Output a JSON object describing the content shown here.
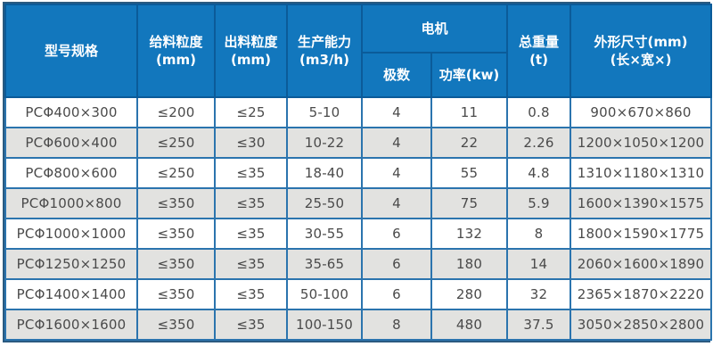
{
  "colors": {
    "header_bg": "#1277bd",
    "header_border": "#0b5b99",
    "header_text": "#ffffff",
    "outer_border": "#2a5a80",
    "cell_border": "#2b74ae",
    "row_bg": "#ffffff",
    "row_alt_bg": "#e2e2e0",
    "data_text": "#4a4a4a"
  },
  "table": {
    "headers": {
      "model": "型号规格",
      "feed_size": "给料粒度\n(mm)",
      "discharge_size": "出料粒度\n(mm)",
      "capacity": "生产能力\n(m3/h)",
      "motor_group": "电机",
      "poles": "极数",
      "power": "功率(kw)",
      "weight": "总重量\n(t)",
      "dimensions": "外形尺寸(mm)\n(长×宽×)"
    },
    "rows": [
      [
        "PCΦ400×300",
        "≤200",
        "≤25",
        "5-10",
        "4",
        "11",
        "0.8",
        "900×670×860"
      ],
      [
        "PCΦ600×400",
        "≤250",
        "≤30",
        "10-22",
        "4",
        "22",
        "2.26",
        "1200×1050×1200"
      ],
      [
        "PCΦ800×600",
        "≤250",
        "≤35",
        "18-40",
        "4",
        "55",
        "4.8",
        "1310×1180×1310"
      ],
      [
        "PCΦ1000×800",
        "≤350",
        "≤35",
        "25-50",
        "4",
        "75",
        "5.9",
        "1600×1390×1575"
      ],
      [
        "PCΦ1000×1000",
        "≤350",
        "≤35",
        "30-55",
        "6",
        "132",
        "8",
        "1800×1590×1775"
      ],
      [
        "PCΦ1250×1250",
        "≤350",
        "≤35",
        "35-65",
        "6",
        "180",
        "14",
        "2060×1600×1890"
      ],
      [
        "PCΦ1400×1400",
        "≤350",
        "≤35",
        "50-100",
        "6",
        "280",
        "32",
        "2365×1870×2220"
      ],
      [
        "PCΦ1600×1600",
        "≤350",
        "≤35",
        "100-150",
        "8",
        "480",
        "37.5",
        "3050×2850×2800"
      ]
    ],
    "column_names": [
      "model",
      "feed-size",
      "discharge-size",
      "capacity",
      "poles",
      "power",
      "weight",
      "dimensions"
    ]
  }
}
